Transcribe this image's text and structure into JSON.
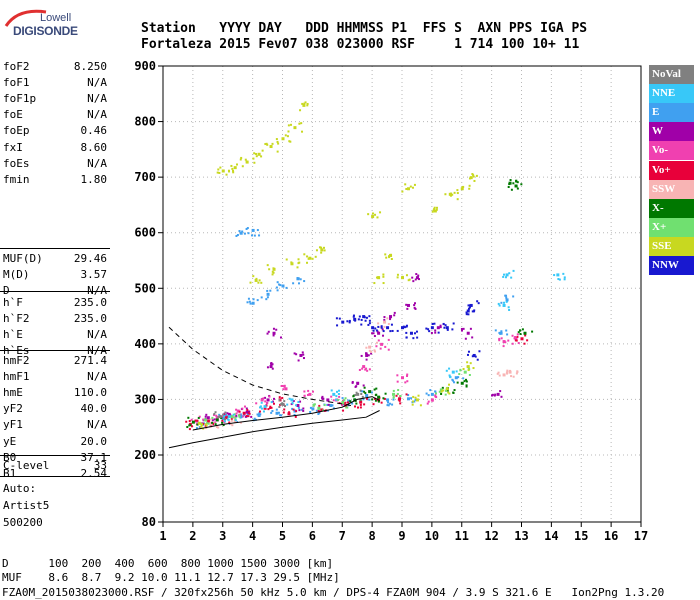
{
  "logo": {
    "top": "Lowell",
    "main": "DIGISONDE"
  },
  "header": {
    "labels": "Station   YYYY DAY   DDD HHMMSS P1  FFS S  AXN PPS IGA PS",
    "values": "Fortaleza 2015 Fev07 038 023000 RSF     1 714 100 10+ 11"
  },
  "params_group1": [
    {
      "name": "foF2",
      "value": "8.250"
    },
    {
      "name": "foF1",
      "value": "N/A"
    },
    {
      "name": "foF1p",
      "value": "N/A"
    },
    {
      "name": "foE",
      "value": "N/A"
    },
    {
      "name": "foEp",
      "value": "0.46"
    },
    {
      "name": "fxI",
      "value": "8.60"
    },
    {
      "name": "foEs",
      "value": "N/A"
    },
    {
      "name": "fmin",
      "value": "1.80"
    }
  ],
  "params_group2": [
    {
      "name": "MUF(D)",
      "value": "29.46"
    },
    {
      "name": "M(D)",
      "value": "3.57"
    },
    {
      "name": "D",
      "value": "N/A"
    }
  ],
  "params_group3": [
    {
      "name": "h`F",
      "value": "235.0"
    },
    {
      "name": "h`F2",
      "value": "235.0"
    },
    {
      "name": "h`E",
      "value": "N/A"
    },
    {
      "name": "h`Es",
      "value": "N/A"
    }
  ],
  "params_group4": [
    {
      "name": "hmF2",
      "value": "271.4"
    },
    {
      "name": "hmF1",
      "value": "N/A"
    },
    {
      "name": "hmE",
      "value": "110.0"
    },
    {
      "name": "yF2",
      "value": "40.0"
    },
    {
      "name": "yF1",
      "value": "N/A"
    },
    {
      "name": "yE",
      "value": "20.0"
    },
    {
      "name": "B0",
      "value": "37.1"
    },
    {
      "name": "B1",
      "value": "2.54"
    }
  ],
  "params_group5": [
    {
      "name": "C-level",
      "value": "33"
    }
  ],
  "misc": {
    "auto": "Auto:",
    "artist": "Artist5",
    "code": "500200"
  },
  "legend": [
    {
      "label": "NoVal",
      "color": "#808080"
    },
    {
      "label": "NNE",
      "color": "#38c8f8"
    },
    {
      "label": "E",
      "color": "#40a0f0"
    },
    {
      "label": "W",
      "color": "#a000a8"
    },
    {
      "label": "Vo-",
      "color": "#f040b0"
    },
    {
      "label": "Vo+",
      "color": "#e8003a"
    },
    {
      "label": "SSW",
      "color": "#f8b4b4"
    },
    {
      "label": "X-",
      "color": "#007800"
    },
    {
      "label": "X+",
      "color": "#70e070"
    },
    {
      "label": "SSE",
      "color": "#c8d820"
    },
    {
      "label": "NNW",
      "color": "#1818d0"
    }
  ],
  "footer": {
    "line1": "D      100  200  400  600  800 1000 1500 3000 [km]",
    "line2": "MUF    8.6  8.7  9.2 10.0 11.1 12.7 17.3 29.5 [MHz]",
    "line3": "FZA0M_2015038023000.RSF / 320fx256h 50 kHz 5.0 km / DPS-4 FZA0M 904 / 3.9 S 321.6 E   Ion2Png 1.3.20"
  },
  "chart_data": {
    "type": "scatter",
    "title": "",
    "xlabel": "",
    "ylabel": "",
    "xlim": [
      1,
      17
    ],
    "ylim": [
      80,
      900
    ],
    "x_ticks": [
      1,
      2,
      3,
      4,
      5,
      6,
      7,
      8,
      9,
      10,
      11,
      12,
      13,
      14,
      15,
      16,
      17
    ],
    "y_ticks": [
      80,
      200,
      300,
      400,
      500,
      600,
      700,
      800,
      900
    ],
    "grid": true,
    "legend_position": "right",
    "series": [
      {
        "name": "E",
        "color": "#40a0f0",
        "points": [
          [
            2.3,
            257
          ],
          [
            3.0,
            266
          ],
          [
            3.6,
            270
          ],
          [
            4.2,
            272
          ],
          [
            4.8,
            276
          ],
          [
            5.4,
            280
          ],
          [
            6.0,
            284
          ],
          [
            6.6,
            290
          ],
          [
            7.2,
            298
          ],
          [
            7.8,
            308
          ],
          [
            4.0,
            474
          ],
          [
            4.5,
            490
          ],
          [
            5.0,
            505
          ],
          [
            5.5,
            518
          ],
          [
            8.5,
            300
          ],
          [
            9.2,
            302
          ],
          [
            10.0,
            310
          ],
          [
            10.8,
            340
          ],
          [
            12.3,
            420
          ],
          [
            12.5,
            480
          ],
          [
            3.6,
            600
          ],
          [
            4.0,
            605
          ]
        ]
      },
      {
        "name": "W",
        "color": "#a000a8",
        "points": [
          [
            2.5,
            268
          ],
          [
            3.2,
            274
          ],
          [
            3.8,
            278
          ],
          [
            4.5,
            300
          ],
          [
            4.6,
            360
          ],
          [
            4.7,
            420
          ],
          [
            5.5,
            290
          ],
          [
            5.6,
            380
          ],
          [
            6.5,
            300
          ],
          [
            7.5,
            330
          ],
          [
            7.8,
            380
          ],
          [
            8.2,
            420
          ],
          [
            8.6,
            450
          ],
          [
            9.2,
            470
          ],
          [
            9.5,
            520
          ],
          [
            10.2,
            430
          ],
          [
            11.2,
            420
          ],
          [
            12.2,
            310
          ]
        ]
      },
      {
        "name": "Vo-",
        "color": "#f040b0",
        "points": [
          [
            2.1,
            262
          ],
          [
            2.8,
            268
          ],
          [
            3.5,
            280
          ],
          [
            4.3,
            300
          ],
          [
            5.1,
            320
          ],
          [
            5.9,
            310
          ],
          [
            6.8,
            300
          ],
          [
            7.7,
            360
          ],
          [
            8.3,
            400
          ],
          [
            9.0,
            340
          ],
          [
            10.0,
            300
          ],
          [
            12.4,
            405
          ],
          [
            12.8,
            410
          ]
        ]
      },
      {
        "name": "Vo+",
        "color": "#e8003a",
        "points": [
          [
            1.9,
            256
          ],
          [
            2.5,
            262
          ],
          [
            3.1,
            268
          ],
          [
            3.7,
            276
          ],
          [
            4.4,
            285
          ],
          [
            4.9,
            300
          ],
          [
            5.2,
            275
          ],
          [
            6.3,
            282
          ],
          [
            7.1,
            290
          ],
          [
            7.6,
            296
          ],
          [
            8.2,
            300
          ],
          [
            8.9,
            302
          ],
          [
            13.0,
            410
          ]
        ]
      },
      {
        "name": "SSW",
        "color": "#f8b4b4",
        "points": [
          [
            2.6,
            258
          ],
          [
            3.4,
            262
          ],
          [
            7.9,
            395
          ],
          [
            8.4,
            440
          ],
          [
            12.4,
            345
          ],
          [
            12.6,
            350
          ]
        ]
      },
      {
        "name": "X-",
        "color": "#007800",
        "points": [
          [
            2.0,
            260
          ],
          [
            2.8,
            264
          ],
          [
            7.4,
            300
          ],
          [
            7.9,
            315
          ],
          [
            8.2,
            305
          ],
          [
            10.5,
            318
          ],
          [
            11.0,
            330
          ],
          [
            12.6,
            690
          ],
          [
            12.8,
            685
          ],
          [
            13.1,
            420
          ]
        ]
      },
      {
        "name": "X+",
        "color": "#70e070",
        "points": [
          [
            2.4,
            264
          ],
          [
            3.3,
            270
          ],
          [
            6.2,
            285
          ],
          [
            7.0,
            295
          ],
          [
            8.7,
            310
          ],
          [
            10.3,
            318
          ],
          [
            11.1,
            350
          ]
        ]
      },
      {
        "name": "SSE",
        "color": "#c8d820",
        "points": [
          [
            2.2,
            258
          ],
          [
            3.0,
            712
          ],
          [
            3.4,
            718
          ],
          [
            3.8,
            728
          ],
          [
            4.2,
            742
          ],
          [
            4.6,
            756
          ],
          [
            5.0,
            770
          ],
          [
            5.4,
            790
          ],
          [
            5.7,
            830
          ],
          [
            4.1,
            515
          ],
          [
            4.7,
            535
          ],
          [
            5.3,
            545
          ],
          [
            5.9,
            555
          ],
          [
            6.3,
            570
          ],
          [
            8.2,
            520
          ],
          [
            8.6,
            560
          ],
          [
            9.0,
            520
          ],
          [
            10.1,
            640
          ],
          [
            10.6,
            670
          ],
          [
            11.0,
            680
          ],
          [
            11.3,
            700
          ],
          [
            9.5,
            300
          ],
          [
            10.5,
            320
          ],
          [
            11.2,
            360
          ],
          [
            8.0,
            630
          ],
          [
            9.2,
            680
          ]
        ]
      },
      {
        "name": "NNW",
        "color": "#1818d0",
        "points": [
          [
            7.0,
            440
          ],
          [
            7.4,
            445
          ],
          [
            7.7,
            450
          ],
          [
            8.0,
            430
          ],
          [
            8.5,
            430
          ],
          [
            9.0,
            430
          ],
          [
            10.0,
            430
          ],
          [
            10.5,
            430
          ],
          [
            11.2,
            460
          ],
          [
            11.4,
            380
          ],
          [
            11.3,
            470
          ],
          [
            9.3,
            420
          ]
        ]
      },
      {
        "name": "NNE",
        "color": "#38c8f8",
        "points": [
          [
            3.2,
            270
          ],
          [
            4.4,
            288
          ],
          [
            5.3,
            300
          ],
          [
            6.7,
            310
          ],
          [
            10.7,
            350
          ],
          [
            12.4,
            470
          ],
          [
            12.5,
            525
          ],
          [
            14.2,
            525
          ]
        ]
      },
      {
        "name": "NoVal",
        "color": "#808080",
        "points": [
          [
            2.9,
            270
          ],
          [
            5.0,
            292
          ],
          [
            7.5,
            310
          ]
        ]
      }
    ],
    "trace_curves": [
      {
        "name": "dashed-trace",
        "style": "dashed",
        "points": [
          [
            1.2,
            430
          ],
          [
            2.0,
            390
          ],
          [
            3.0,
            352
          ],
          [
            4.0,
            326
          ],
          [
            5.0,
            310
          ],
          [
            6.0,
            300
          ],
          [
            7.0,
            292
          ],
          [
            7.4,
            288
          ]
        ]
      },
      {
        "name": "solid-profile-upper",
        "style": "solid",
        "points": [
          [
            2.0,
            245
          ],
          [
            3.0,
            255
          ],
          [
            4.0,
            262
          ],
          [
            5.0,
            268
          ],
          [
            6.0,
            275
          ],
          [
            7.0,
            286
          ],
          [
            7.5,
            300
          ],
          [
            8.0,
            305
          ],
          [
            8.25,
            298
          ]
        ]
      },
      {
        "name": "solid-profile-lower",
        "style": "solid",
        "points": [
          [
            1.2,
            213
          ],
          [
            2.0,
            222
          ],
          [
            3.0,
            232
          ],
          [
            4.0,
            242
          ],
          [
            5.0,
            250
          ],
          [
            6.0,
            257
          ],
          [
            7.0,
            263
          ],
          [
            7.8,
            268
          ],
          [
            8.25,
            280
          ]
        ]
      }
    ]
  }
}
